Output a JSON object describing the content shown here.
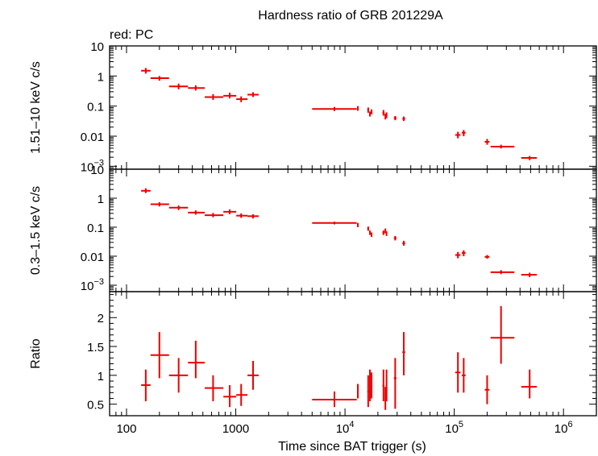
{
  "chart_data": {
    "type": "scatter",
    "title": "Hardness ratio of GRB 201229A",
    "legend_label": "red: PC",
    "xlabel": "Time since BAT trigger (s)",
    "x_scale": "log",
    "xlim": [
      70,
      2000000
    ],
    "x_tick_labels": [
      {
        "value": 100,
        "base": "100",
        "sup": ""
      },
      {
        "value": 1000,
        "base": "1000",
        "sup": ""
      },
      {
        "value": 10000,
        "base": "10",
        "sup": "4"
      },
      {
        "value": 100000,
        "base": "10",
        "sup": "5"
      },
      {
        "value": 1000000,
        "base": "10",
        "sup": "6"
      }
    ],
    "colors": {
      "series": "#ee0000",
      "axis": "#000000"
    },
    "panels": [
      {
        "name": "hard-band",
        "ylabel": "1.51–10 keV c/s",
        "y_scale": "log",
        "ylim": [
          0.0008,
          10
        ],
        "y_tick_labels": [
          {
            "value": 10,
            "base": "10",
            "sup": ""
          },
          {
            "value": 1,
            "base": "1",
            "sup": ""
          },
          {
            "value": 0.1,
            "base": "0.1",
            "sup": ""
          },
          {
            "value": 0.01,
            "base": "0.01",
            "sup": ""
          },
          {
            "value": 0.001,
            "base": "10",
            "sup": "−3"
          }
        ],
        "points": [
          {
            "x": 150,
            "xlo": 136,
            "xhi": 166,
            "y": 1.5,
            "ylo": 1.2,
            "yhi": 1.85
          },
          {
            "x": 200,
            "xlo": 166,
            "xhi": 245,
            "y": 0.85,
            "ylo": 0.7,
            "yhi": 1.0
          },
          {
            "x": 300,
            "xlo": 245,
            "xhi": 365,
            "y": 0.45,
            "ylo": 0.36,
            "yhi": 0.56
          },
          {
            "x": 430,
            "xlo": 365,
            "xhi": 520,
            "y": 0.4,
            "ylo": 0.33,
            "yhi": 0.49
          },
          {
            "x": 620,
            "xlo": 520,
            "xhi": 770,
            "y": 0.2,
            "ylo": 0.16,
            "yhi": 0.25
          },
          {
            "x": 880,
            "xlo": 770,
            "xhi": 1010,
            "y": 0.22,
            "ylo": 0.18,
            "yhi": 0.28
          },
          {
            "x": 1120,
            "xlo": 1010,
            "xhi": 1280,
            "y": 0.17,
            "ylo": 0.135,
            "yhi": 0.21
          },
          {
            "x": 1440,
            "xlo": 1280,
            "xhi": 1620,
            "y": 0.24,
            "ylo": 0.2,
            "yhi": 0.29
          },
          {
            "x": 8000,
            "xlo": 5000,
            "xhi": 12800,
            "y": 0.08,
            "ylo": 0.068,
            "yhi": 0.094
          },
          {
            "x": 13100,
            "xlo": 12950,
            "xhi": 13250,
            "y": 0.085,
            "ylo": 0.07,
            "yhi": 0.1
          },
          {
            "x": 16300,
            "xlo": 16000,
            "xhi": 16600,
            "y": 0.075,
            "ylo": 0.06,
            "yhi": 0.09
          },
          {
            "x": 16900,
            "xlo": 16700,
            "xhi": 17100,
            "y": 0.055,
            "ylo": 0.045,
            "yhi": 0.066
          },
          {
            "x": 17500,
            "xlo": 17300,
            "xhi": 17700,
            "y": 0.065,
            "ylo": 0.053,
            "yhi": 0.078
          },
          {
            "x": 22500,
            "xlo": 22000,
            "xhi": 23000,
            "y": 0.06,
            "ylo": 0.048,
            "yhi": 0.074
          },
          {
            "x": 23400,
            "xlo": 23100,
            "xhi": 23700,
            "y": 0.045,
            "ylo": 0.036,
            "yhi": 0.056
          },
          {
            "x": 24000,
            "xlo": 23700,
            "xhi": 24300,
            "y": 0.05,
            "ylo": 0.04,
            "yhi": 0.062
          },
          {
            "x": 28800,
            "xlo": 28000,
            "xhi": 29600,
            "y": 0.04,
            "ylo": 0.034,
            "yhi": 0.047
          },
          {
            "x": 34500,
            "xlo": 33500,
            "xhi": 35500,
            "y": 0.038,
            "ylo": 0.032,
            "yhi": 0.045
          },
          {
            "x": 108000,
            "xlo": 102000,
            "xhi": 114000,
            "y": 0.011,
            "ylo": 0.0085,
            "yhi": 0.014
          },
          {
            "x": 122000,
            "xlo": 117000,
            "xhi": 127000,
            "y": 0.013,
            "ylo": 0.01,
            "yhi": 0.016
          },
          {
            "x": 200000,
            "xlo": 190000,
            "xhi": 210000,
            "y": 0.0065,
            "ylo": 0.0052,
            "yhi": 0.0081
          },
          {
            "x": 268000,
            "xlo": 215000,
            "xhi": 355000,
            "y": 0.0045,
            "ylo": 0.0039,
            "yhi": 0.0052
          },
          {
            "x": 490000,
            "xlo": 410000,
            "xhi": 570000,
            "y": 0.0019,
            "ylo": 0.0016,
            "yhi": 0.0022
          }
        ]
      },
      {
        "name": "soft-band",
        "ylabel": "0.3–1.5 keV c/s",
        "y_scale": "log",
        "ylim": [
          0.0006,
          10
        ],
        "y_tick_labels": [
          {
            "value": 10,
            "base": "10",
            "sup": ""
          },
          {
            "value": 1,
            "base": "1",
            "sup": ""
          },
          {
            "value": 0.1,
            "base": "0.1",
            "sup": ""
          },
          {
            "value": 0.01,
            "base": "0.01",
            "sup": ""
          },
          {
            "value": 0.001,
            "base": "10",
            "sup": "−3"
          }
        ],
        "points": [
          {
            "x": 150,
            "xlo": 136,
            "xhi": 166,
            "y": 1.8,
            "ylo": 1.5,
            "yhi": 2.2
          },
          {
            "x": 200,
            "xlo": 166,
            "xhi": 245,
            "y": 0.62,
            "ylo": 0.52,
            "yhi": 0.73
          },
          {
            "x": 300,
            "xlo": 245,
            "xhi": 365,
            "y": 0.47,
            "ylo": 0.39,
            "yhi": 0.56
          },
          {
            "x": 430,
            "xlo": 365,
            "xhi": 520,
            "y": 0.32,
            "ylo": 0.27,
            "yhi": 0.38
          },
          {
            "x": 620,
            "xlo": 520,
            "xhi": 770,
            "y": 0.26,
            "ylo": 0.22,
            "yhi": 0.31
          },
          {
            "x": 880,
            "xlo": 770,
            "xhi": 1010,
            "y": 0.34,
            "ylo": 0.28,
            "yhi": 0.41
          },
          {
            "x": 1120,
            "xlo": 1010,
            "xhi": 1280,
            "y": 0.25,
            "ylo": 0.21,
            "yhi": 0.3
          },
          {
            "x": 1440,
            "xlo": 1280,
            "xhi": 1620,
            "y": 0.24,
            "ylo": 0.2,
            "yhi": 0.28
          },
          {
            "x": 8000,
            "xlo": 5000,
            "xhi": 12800,
            "y": 0.14,
            "ylo": 0.125,
            "yhi": 0.155
          },
          {
            "x": 13100,
            "xlo": 12950,
            "xhi": 13250,
            "y": 0.12,
            "ylo": 0.1,
            "yhi": 0.14
          },
          {
            "x": 16300,
            "xlo": 16000,
            "xhi": 16600,
            "y": 0.09,
            "ylo": 0.075,
            "yhi": 0.105
          },
          {
            "x": 16900,
            "xlo": 16700,
            "xhi": 17100,
            "y": 0.065,
            "ylo": 0.054,
            "yhi": 0.077
          },
          {
            "x": 17500,
            "xlo": 17300,
            "xhi": 17700,
            "y": 0.055,
            "ylo": 0.046,
            "yhi": 0.066
          },
          {
            "x": 22500,
            "xlo": 22000,
            "xhi": 23000,
            "y": 0.065,
            "ylo": 0.054,
            "yhi": 0.077
          },
          {
            "x": 23400,
            "xlo": 23100,
            "xhi": 23700,
            "y": 0.075,
            "ylo": 0.062,
            "yhi": 0.09
          },
          {
            "x": 24000,
            "xlo": 23700,
            "xhi": 24300,
            "y": 0.06,
            "ylo": 0.05,
            "yhi": 0.072
          },
          {
            "x": 28800,
            "xlo": 28000,
            "xhi": 29600,
            "y": 0.042,
            "ylo": 0.035,
            "yhi": 0.05
          },
          {
            "x": 34500,
            "xlo": 33500,
            "xhi": 35500,
            "y": 0.028,
            "ylo": 0.023,
            "yhi": 0.034
          },
          {
            "x": 108000,
            "xlo": 102000,
            "xhi": 114000,
            "y": 0.011,
            "ylo": 0.0085,
            "yhi": 0.014
          },
          {
            "x": 122000,
            "xlo": 117000,
            "xhi": 127000,
            "y": 0.013,
            "ylo": 0.01,
            "yhi": 0.016
          },
          {
            "x": 200000,
            "xlo": 190000,
            "xhi": 210000,
            "y": 0.0095,
            "ylo": 0.0082,
            "yhi": 0.011
          },
          {
            "x": 268000,
            "xlo": 215000,
            "xhi": 355000,
            "y": 0.0028,
            "ylo": 0.0024,
            "yhi": 0.0033
          },
          {
            "x": 490000,
            "xlo": 410000,
            "xhi": 570000,
            "y": 0.0023,
            "ylo": 0.0019,
            "yhi": 0.0027
          }
        ]
      },
      {
        "name": "ratio",
        "ylabel": "Ratio",
        "y_scale": "linear",
        "ylim": [
          0.3,
          2.45
        ],
        "y_tick_labels": [
          {
            "value": 0.5,
            "base": "0.5",
            "sup": ""
          },
          {
            "value": 1,
            "base": "1",
            "sup": ""
          },
          {
            "value": 1.5,
            "base": "1.5",
            "sup": ""
          },
          {
            "value": 2,
            "base": "2",
            "sup": ""
          }
        ],
        "points": [
          {
            "x": 150,
            "xlo": 136,
            "xhi": 166,
            "y": 0.83,
            "ylo": 0.55,
            "yhi": 1.1
          },
          {
            "x": 200,
            "xlo": 166,
            "xhi": 245,
            "y": 1.35,
            "ylo": 0.95,
            "yhi": 1.75
          },
          {
            "x": 300,
            "xlo": 245,
            "xhi": 365,
            "y": 1.0,
            "ylo": 0.7,
            "yhi": 1.3
          },
          {
            "x": 430,
            "xlo": 365,
            "xhi": 520,
            "y": 1.22,
            "ylo": 0.95,
            "yhi": 1.6
          },
          {
            "x": 620,
            "xlo": 520,
            "xhi": 770,
            "y": 0.78,
            "ylo": 0.55,
            "yhi": 1.0
          },
          {
            "x": 880,
            "xlo": 770,
            "xhi": 1010,
            "y": 0.63,
            "ylo": 0.45,
            "yhi": 0.83
          },
          {
            "x": 1120,
            "xlo": 1010,
            "xhi": 1280,
            "y": 0.66,
            "ylo": 0.47,
            "yhi": 0.85
          },
          {
            "x": 1440,
            "xlo": 1280,
            "xhi": 1620,
            "y": 1.0,
            "ylo": 0.75,
            "yhi": 1.25
          },
          {
            "x": 8000,
            "xlo": 5000,
            "xhi": 12800,
            "y": 0.58,
            "ylo": 0.45,
            "yhi": 0.72
          },
          {
            "x": 13100,
            "xlo": 12950,
            "xhi": 13250,
            "y": 0.72,
            "ylo": 0.6,
            "yhi": 0.85
          },
          {
            "x": 16300,
            "xlo": 16000,
            "xhi": 16600,
            "y": 0.72,
            "ylo": 0.45,
            "yhi": 1.0
          },
          {
            "x": 16900,
            "xlo": 16700,
            "xhi": 17100,
            "y": 0.85,
            "ylo": 0.55,
            "yhi": 1.1
          },
          {
            "x": 17500,
            "xlo": 17300,
            "xhi": 17700,
            "y": 0.9,
            "ylo": 0.6,
            "yhi": 1.05
          },
          {
            "x": 22500,
            "xlo": 22000,
            "xhi": 23000,
            "y": 0.82,
            "ylo": 0.55,
            "yhi": 1.1
          },
          {
            "x": 23400,
            "xlo": 23100,
            "xhi": 23700,
            "y": 0.6,
            "ylo": 0.4,
            "yhi": 0.8
          },
          {
            "x": 24000,
            "xlo": 23700,
            "xhi": 24300,
            "y": 0.85,
            "ylo": 0.55,
            "yhi": 1.1
          },
          {
            "x": 28800,
            "xlo": 28000,
            "xhi": 29600,
            "y": 0.95,
            "ylo": 0.42,
            "yhi": 1.3
          },
          {
            "x": 34500,
            "xlo": 33500,
            "xhi": 35500,
            "y": 1.4,
            "ylo": 1.0,
            "yhi": 1.75
          },
          {
            "x": 108000,
            "xlo": 102000,
            "xhi": 114000,
            "y": 1.05,
            "ylo": 0.7,
            "yhi": 1.4
          },
          {
            "x": 122000,
            "xlo": 117000,
            "xhi": 127000,
            "y": 1.0,
            "ylo": 0.7,
            "yhi": 1.3
          },
          {
            "x": 200000,
            "xlo": 190000,
            "xhi": 210000,
            "y": 0.75,
            "ylo": 0.5,
            "yhi": 1.0
          },
          {
            "x": 268000,
            "xlo": 215000,
            "xhi": 355000,
            "y": 1.65,
            "ylo": 1.2,
            "yhi": 2.2
          },
          {
            "x": 490000,
            "xlo": 410000,
            "xhi": 570000,
            "y": 0.8,
            "ylo": 0.6,
            "yhi": 1.1
          }
        ]
      }
    ]
  }
}
